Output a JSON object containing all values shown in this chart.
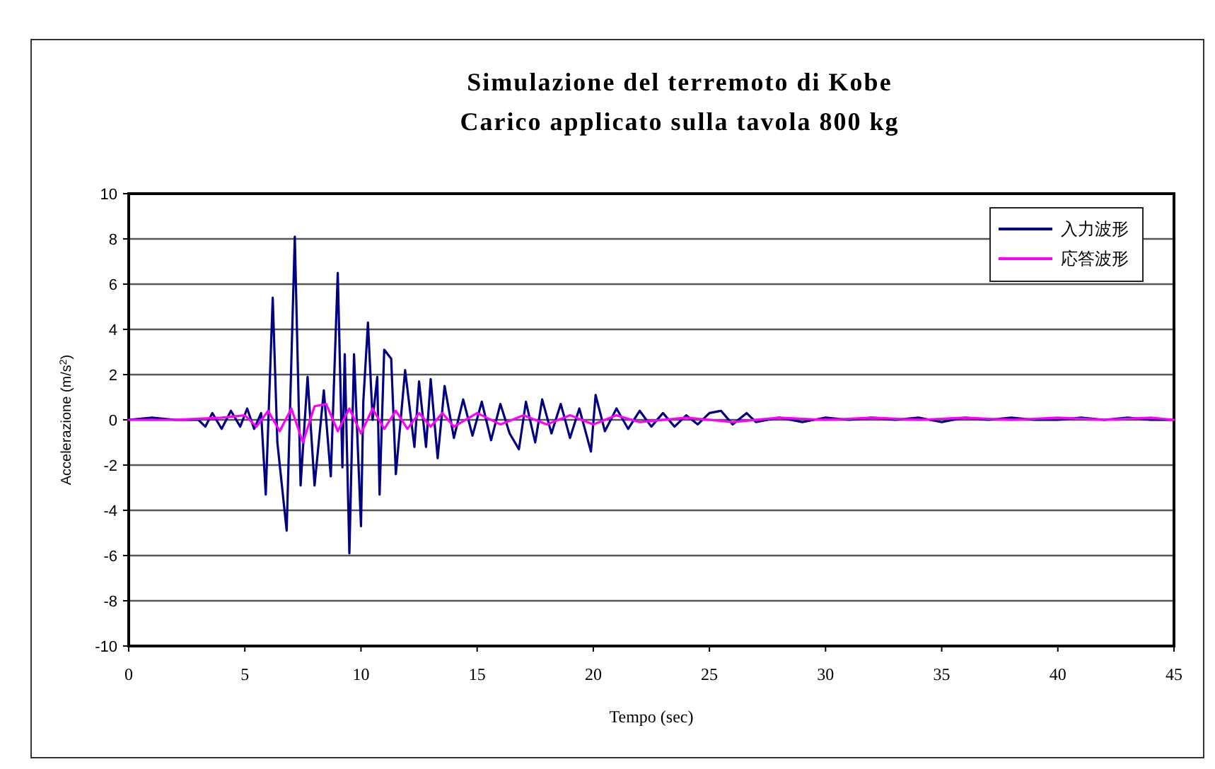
{
  "chart_data": {
    "type": "line",
    "title": "Simulazione del terremoto di Kobe",
    "subtitle": "Carico applicato sulla tavola 800 kg",
    "xlabel": "Tempo (sec)",
    "ylabel": "Accelerazione (m/s$^{2}$)",
    "xlim": [
      0,
      45
    ],
    "ylim": [
      -10,
      10
    ],
    "xticks": [
      0,
      5,
      10,
      15,
      20,
      25,
      30,
      35,
      40,
      45
    ],
    "yticks": [
      -10,
      -8,
      -6,
      -4,
      -2,
      0,
      2,
      4,
      6,
      8,
      10
    ],
    "grid": "y",
    "legend": "top right",
    "marker": "none",
    "line_style": "solid",
    "series": [
      {
        "name": "入力波形",
        "color": "#000080",
        "x": [
          0,
          1,
          2,
          3,
          3.3,
          3.6,
          4,
          4.4,
          4.8,
          5.1,
          5.4,
          5.7,
          5.9,
          6.2,
          6.4,
          6.8,
          7.15,
          7.4,
          7.7,
          8.0,
          8.4,
          8.7,
          9.0,
          9.2,
          9.3,
          9.5,
          9.7,
          10.0,
          10.1,
          10.3,
          10.5,
          10.7,
          10.8,
          11.0,
          11.3,
          11.5,
          11.9,
          12.3,
          12.5,
          12.8,
          13.0,
          13.3,
          13.6,
          14.0,
          14.4,
          14.8,
          15.2,
          15.6,
          16.0,
          16.4,
          16.8,
          17.1,
          17.5,
          17.8,
          18.2,
          18.6,
          19.0,
          19.4,
          19.9,
          20.1,
          20.5,
          21.0,
          21.5,
          22.0,
          22.5,
          23.0,
          23.5,
          24.0,
          24.5,
          25.0,
          25.5,
          26.0,
          26.6,
          27.0,
          28,
          29,
          30,
          31,
          32,
          33,
          34,
          35,
          36,
          37,
          38,
          39,
          40,
          41,
          42,
          43,
          44,
          45
        ],
        "values": [
          0,
          0.1,
          0,
          0,
          -0.3,
          0.3,
          -0.4,
          0.4,
          -0.3,
          0.5,
          -0.4,
          0.3,
          -3.3,
          5.4,
          -1.0,
          -4.9,
          8.1,
          -2.9,
          1.9,
          -2.9,
          1.3,
          -2.5,
          6.5,
          -2.1,
          2.9,
          -5.9,
          2.9,
          -4.7,
          0.8,
          4.3,
          0,
          1.9,
          -3.3,
          3.1,
          2.7,
          -2.4,
          2.2,
          -1.2,
          1.7,
          -1.2,
          1.8,
          -1.7,
          1.5,
          -0.8,
          0.9,
          -0.7,
          0.8,
          -0.9,
          0.7,
          -0.6,
          -1.3,
          0.8,
          -1.0,
          0.9,
          -0.6,
          0.7,
          -0.8,
          0.5,
          -1.4,
          1.1,
          -0.5,
          0.5,
          -0.4,
          0.4,
          -0.3,
          0.3,
          -0.3,
          0.2,
          -0.2,
          0.3,
          0.4,
          -0.2,
          0.3,
          -0.1,
          0.1,
          -0.1,
          0.1,
          0,
          0.1,
          0,
          0.1,
          -0.1,
          0.1,
          0,
          0.1,
          0,
          0,
          0.1,
          0,
          0.1,
          0,
          0
        ]
      },
      {
        "name": "応答波形",
        "color": "#ff00ff",
        "x": [
          0,
          2,
          4,
          5,
          5.5,
          6,
          6.5,
          7,
          7.5,
          8,
          8.5,
          9,
          9.5,
          10,
          10.5,
          11,
          11.5,
          12,
          12.5,
          13,
          13.5,
          14,
          15,
          16,
          17,
          18,
          19,
          20,
          21,
          22,
          24,
          26,
          28,
          30,
          32,
          34,
          36,
          38,
          40,
          42,
          44,
          45
        ],
        "values": [
          0,
          0,
          0.1,
          0.2,
          -0.3,
          0.4,
          -0.5,
          0.5,
          -1.0,
          0.6,
          0.7,
          -0.5,
          0.5,
          -0.6,
          0.5,
          -0.4,
          0.4,
          -0.4,
          0.3,
          -0.3,
          0.3,
          -0.3,
          0.3,
          -0.2,
          0.2,
          -0.2,
          0.2,
          -0.2,
          0.2,
          -0.1,
          0.1,
          -0.1,
          0.1,
          0,
          0.1,
          0,
          0.1,
          0,
          0.1,
          0,
          0.1,
          0
        ]
      }
    ]
  }
}
